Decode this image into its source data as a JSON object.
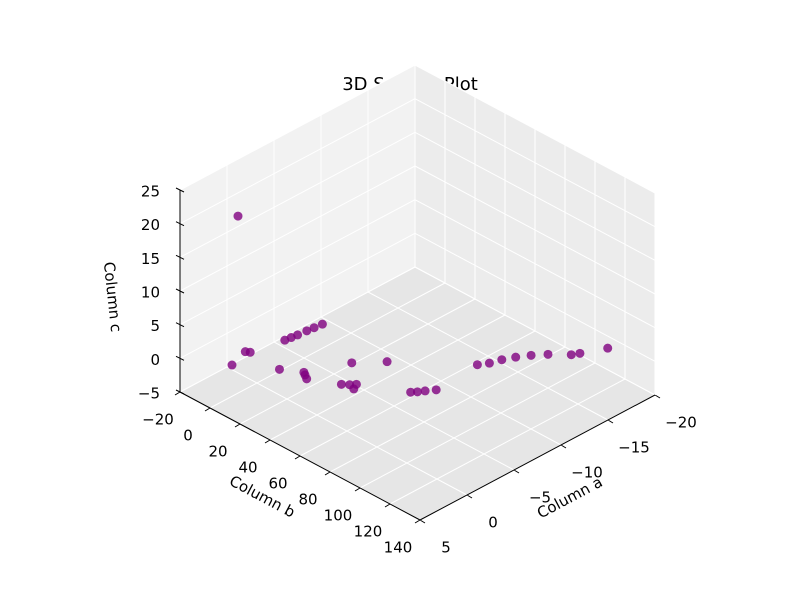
{
  "chart_data": {
    "type": "scatter3d",
    "title": "3D Scatter Plot",
    "xlabel": "Column a",
    "ylabel": "Column b",
    "zlabel": "Column c",
    "color": "#800080",
    "xlim": [
      5,
      -20
    ],
    "ylim": [
      -20,
      140
    ],
    "zlim": [
      -5,
      25
    ],
    "xticks": [
      {
        "value": -20,
        "label": "−20"
      },
      {
        "value": -15,
        "label": "−15"
      },
      {
        "value": -10,
        "label": "−10"
      },
      {
        "value": -5,
        "label": "−5"
      },
      0,
      5
    ],
    "yticks": [
      {
        "value": -20,
        "label": "−20"
      },
      0,
      20,
      40,
      60,
      80,
      100,
      120,
      140
    ],
    "zticks": [
      {
        "value": -5,
        "label": "−5"
      },
      0,
      5,
      10,
      15,
      20,
      25
    ],
    "grid": true,
    "x": [
      2.9,
      2.5,
      2.2,
      2.0,
      -2.4,
      -3.0,
      -3.6,
      -4.5,
      -5.2,
      -6,
      0,
      0.3,
      -0.2,
      -1.4,
      -1.0,
      -1.8,
      -1.2,
      -3.7,
      -5.7,
      -3.9,
      -4.3,
      -4.8,
      -5.5,
      -10.2,
      -11,
      -12,
      -13,
      -14,
      -15,
      -16.8,
      -16.2,
      -18.8,
      0.8
    ],
    "y": [
      1.5,
      3,
      6,
      8,
      3.5,
      4,
      4.5,
      5,
      5.5,
      6,
      32,
      35,
      30,
      53,
      50,
      55,
      57,
      40,
      51,
      78,
      80,
      82,
      85,
      83,
      86,
      88,
      91,
      95,
      100,
      110,
      108,
      116,
      20
    ],
    "z": [
      0,
      22,
      2,
      2,
      0,
      0,
      0,
      0,
      0,
      0,
      0,
      0,
      0,
      0,
      0,
      0,
      0,
      0,
      0,
      0,
      0,
      0,
      0,
      0,
      0,
      0,
      0,
      0,
      0,
      0,
      0,
      0,
      0
    ]
  }
}
